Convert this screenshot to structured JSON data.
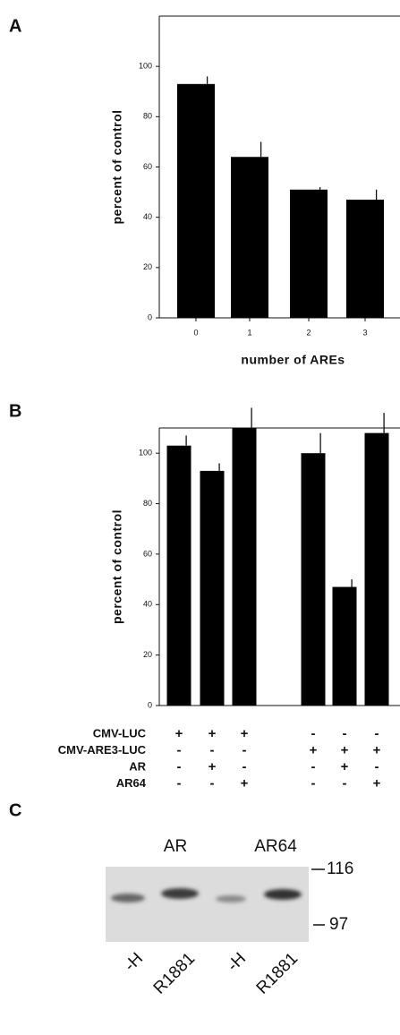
{
  "chart_data": [
    {
      "type": "bar",
      "label": "A",
      "ylabel": "percent of control",
      "xlabel": "number of AREs",
      "categories": [
        "0",
        "1",
        "2",
        "3"
      ],
      "values": [
        93,
        64,
        51,
        47
      ],
      "errors": [
        3,
        6,
        1,
        4
      ],
      "color": "#000000",
      "ylim": [
        0,
        120
      ],
      "yticks": [
        0,
        20,
        40,
        60,
        80,
        100
      ]
    },
    {
      "type": "bar",
      "label": "B",
      "ylabel": "percent of control",
      "categories": [
        null,
        null,
        null,
        null,
        null,
        null
      ],
      "values": [
        103,
        93,
        110,
        100,
        47,
        108
      ],
      "errors": [
        4,
        3,
        8,
        8,
        3,
        8
      ],
      "color": "#000000",
      "ylim": [
        0,
        110
      ],
      "yticks": [
        0,
        20,
        40,
        60,
        80,
        100
      ],
      "conditions": [
        {
          "name": "CMV-LUC",
          "values": [
            "+",
            "+",
            "+",
            "-",
            "-",
            "-"
          ]
        },
        {
          "name": "CMV-ARE3-LUC",
          "values": [
            "-",
            "-",
            "-",
            "+",
            "+",
            "+"
          ]
        },
        {
          "name": "AR",
          "values": [
            "-",
            "+",
            "-",
            "-",
            "+",
            "-"
          ]
        },
        {
          "name": "AR64",
          "values": [
            "-",
            "-",
            "+",
            "-",
            "-",
            "+"
          ]
        }
      ]
    }
  ],
  "blot": {
    "label": "C",
    "groups": [
      "AR",
      "AR64"
    ],
    "markers": [
      116,
      97
    ],
    "lanes": [
      "-H",
      "R1881",
      "-H",
      "R1881"
    ]
  }
}
